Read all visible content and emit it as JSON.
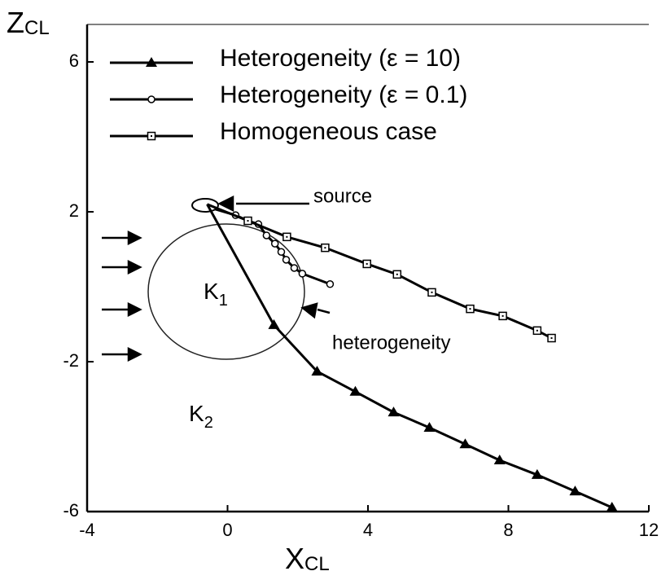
{
  "chart_data": {
    "type": "line",
    "y_label": "Z",
    "y_label_sub": "CL",
    "x_label": "X",
    "x_label_sub": "CL",
    "xlim": [
      -4,
      12
    ],
    "xticks": [
      -4,
      0,
      4,
      8,
      12
    ],
    "ylim": [
      -6,
      7
    ],
    "yticks": [
      -6,
      -2,
      2,
      6
    ],
    "series": [
      {
        "name": "Heterogeneity (ε = 10)",
        "color": "#000000",
        "marker": "triangle",
        "x": [
          -0.58,
          1.32,
          2.55,
          3.64,
          4.73,
          5.75,
          6.77,
          7.75,
          8.82,
          9.9,
          10.95
        ],
        "values": [
          2.2,
          -1.02,
          -2.26,
          -2.8,
          -3.35,
          -3.76,
          -4.2,
          -4.63,
          -5.02,
          -5.46,
          -5.89
        ]
      },
      {
        "name": "Heterogeneity (ε = 0.1)",
        "color": "#000000",
        "marker": "circle",
        "x": [
          -0.35,
          0.23,
          0.58,
          0.88,
          1.11,
          1.35,
          1.53,
          1.67,
          1.9,
          2.13,
          2.92
        ],
        "values": [
          2.07,
          1.91,
          1.76,
          1.67,
          1.37,
          1.15,
          0.93,
          0.72,
          0.5,
          0.35,
          0.07
        ]
      },
      {
        "name": "Homogeneous case",
        "color": "#000000",
        "marker": "square",
        "x": [
          -0.58,
          0.58,
          1.69,
          2.78,
          3.97,
          4.83,
          5.82,
          6.91,
          7.84,
          8.82,
          9.23
        ],
        "values": [
          2.2,
          1.76,
          1.33,
          1.04,
          0.61,
          0.33,
          -0.15,
          -0.59,
          -0.78,
          -1.17,
          -1.37
        ]
      }
    ],
    "annotations": {
      "source": "source",
      "heterogeneity": "heterogeneity",
      "k1": "K",
      "k1_sub": "1",
      "k2": "K",
      "k2_sub": "2"
    }
  }
}
